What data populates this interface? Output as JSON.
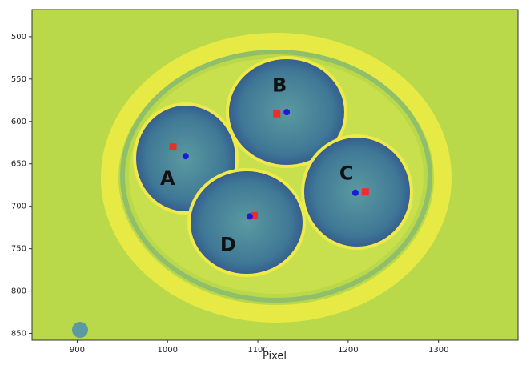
{
  "chart_data": {
    "type": "scatter",
    "x_label": "Pixel",
    "xlim": [
      850,
      1388
    ],
    "ylim": [
      858,
      468
    ],
    "xticks": [
      900,
      1000,
      1100,
      1200,
      1300
    ],
    "yticks": [
      500,
      550,
      600,
      650,
      700,
      750,
      800,
      850
    ],
    "series": [
      {
        "color": "#e8302a",
        "marker": "square",
        "x": [
          1006,
          1121,
          1219,
          1096
        ],
        "y": [
          630,
          591,
          683,
          711
        ]
      },
      {
        "color": "#1a1adc",
        "marker": "circle",
        "x": [
          1020,
          1132,
          1208,
          1091
        ],
        "y": [
          641,
          589,
          684,
          712
        ]
      }
    ],
    "annotations": [
      {
        "text": "A",
        "x": 1000,
        "y": 668
      },
      {
        "text": "B",
        "x": 1124,
        "y": 558
      },
      {
        "text": "C",
        "x": 1198,
        "y": 662
      },
      {
        "text": "D",
        "x": 1067,
        "y": 746
      }
    ]
  }
}
